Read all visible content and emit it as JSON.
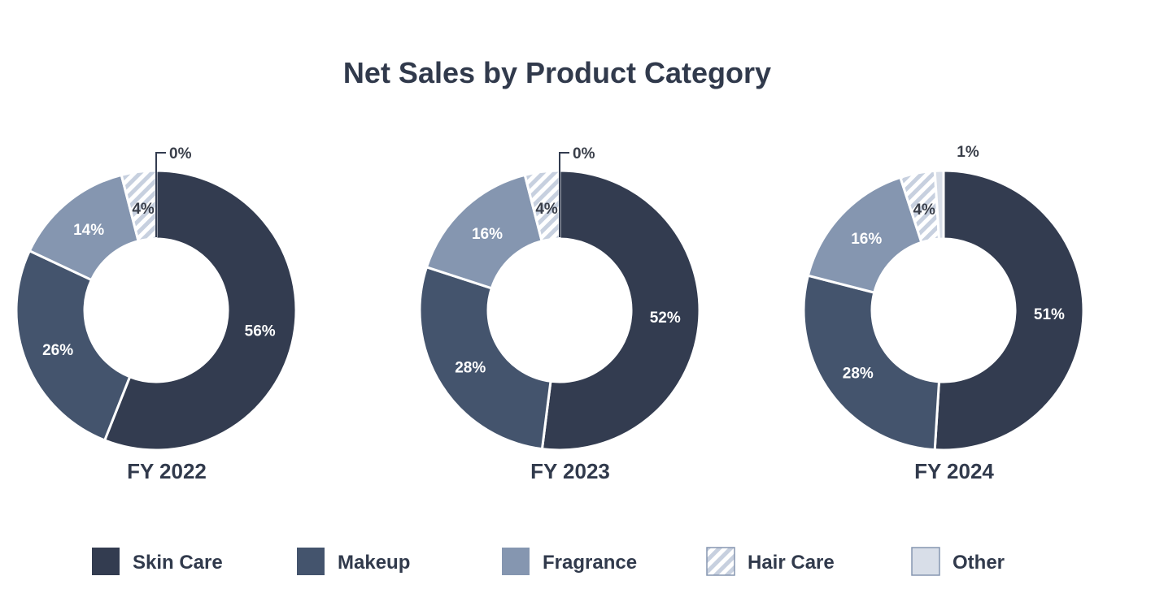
{
  "chart_data": {
    "type": "pie",
    "title": "Net Sales by Product Category",
    "categories": [
      "Skin Care",
      "Makeup",
      "Fragrance",
      "Hair Care",
      "Other"
    ],
    "colors": [
      "#333c50",
      "#44546d",
      "#8596b0",
      "#d5dce8",
      "#d8dee8"
    ],
    "charts": [
      {
        "label": "FY 2022",
        "values": [
          56,
          26,
          14,
          4,
          0
        ],
        "value_labels": [
          "56%",
          "26%",
          "14%",
          "4%",
          "0%"
        ]
      },
      {
        "label": "FY 2023",
        "values": [
          52,
          28,
          16,
          4,
          0
        ],
        "value_labels": [
          "52%",
          "28%",
          "16%",
          "4%",
          "0%"
        ]
      },
      {
        "label": "FY 2024",
        "values": [
          51,
          28,
          16,
          4,
          1
        ],
        "value_labels": [
          "51%",
          "28%",
          "16%",
          "4%",
          "1%"
        ]
      }
    ],
    "legend_position": "bottom"
  }
}
